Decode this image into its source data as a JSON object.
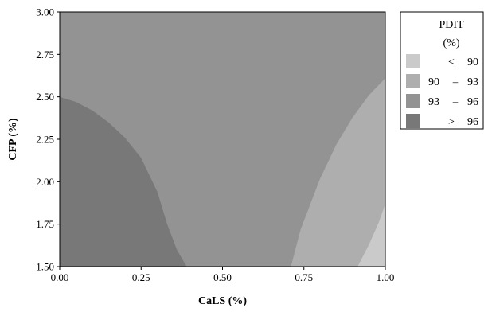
{
  "chart_data": {
    "type": "heatmap",
    "subtype": "filled-contour",
    "title": "",
    "xlabel": "CaLS (%)",
    "ylabel": "CFP (%)",
    "xlim": [
      0.0,
      1.0
    ],
    "ylim": [
      1.5,
      3.0
    ],
    "xticks": [
      "0.00",
      "0.25",
      "0.50",
      "0.75",
      "1.00"
    ],
    "yticks": [
      "1.50",
      "1.75",
      "2.00",
      "2.25",
      "2.50",
      "2.75",
      "3.00"
    ],
    "grid": false,
    "legend": {
      "title_line1": "PDIT",
      "title_line2": "(%)",
      "placement": "right",
      "entries": [
        {
          "label": "< 90",
          "op": "<",
          "lo": "",
          "hi": "90",
          "color": "#cacaca"
        },
        {
          "label": "90 – 93",
          "op": "–",
          "lo": "90",
          "hi": "93",
          "color": "#aeaeae"
        },
        {
          "label": "93 – 96",
          "op": "–",
          "lo": "93",
          "hi": "96",
          "color": "#939393"
        },
        {
          "label": "> 96",
          "op": ">",
          "lo": "",
          "hi": "96",
          "color": "#787878"
        }
      ]
    },
    "regions": [
      {
        "name": "> 96",
        "color": "#787878",
        "boundary": [
          [
            0.0,
            2.5
          ],
          [
            0.05,
            2.47
          ],
          [
            0.1,
            2.42
          ],
          [
            0.15,
            2.35
          ],
          [
            0.2,
            2.26
          ],
          [
            0.25,
            2.14
          ],
          [
            0.3,
            1.94
          ],
          [
            0.33,
            1.75
          ],
          [
            0.36,
            1.6
          ],
          [
            0.39,
            1.5
          ],
          [
            0.0,
            1.5
          ]
        ]
      },
      {
        "name": "90 – 93",
        "color": "#aeaeae",
        "boundary": [
          [
            0.71,
            1.5
          ],
          [
            0.74,
            1.72
          ],
          [
            0.78,
            1.92
          ],
          [
            0.8,
            2.02
          ],
          [
            0.85,
            2.22
          ],
          [
            0.9,
            2.38
          ],
          [
            0.95,
            2.51
          ],
          [
            1.0,
            2.61
          ],
          [
            1.0,
            1.5
          ]
        ]
      },
      {
        "name": "< 90",
        "color": "#cacaca",
        "boundary": [
          [
            0.915,
            1.5
          ],
          [
            0.95,
            1.63
          ],
          [
            0.98,
            1.76
          ],
          [
            1.0,
            1.87
          ],
          [
            1.0,
            1.5
          ]
        ]
      }
    ],
    "background_region": {
      "name": "93 – 96",
      "color": "#939393"
    }
  }
}
